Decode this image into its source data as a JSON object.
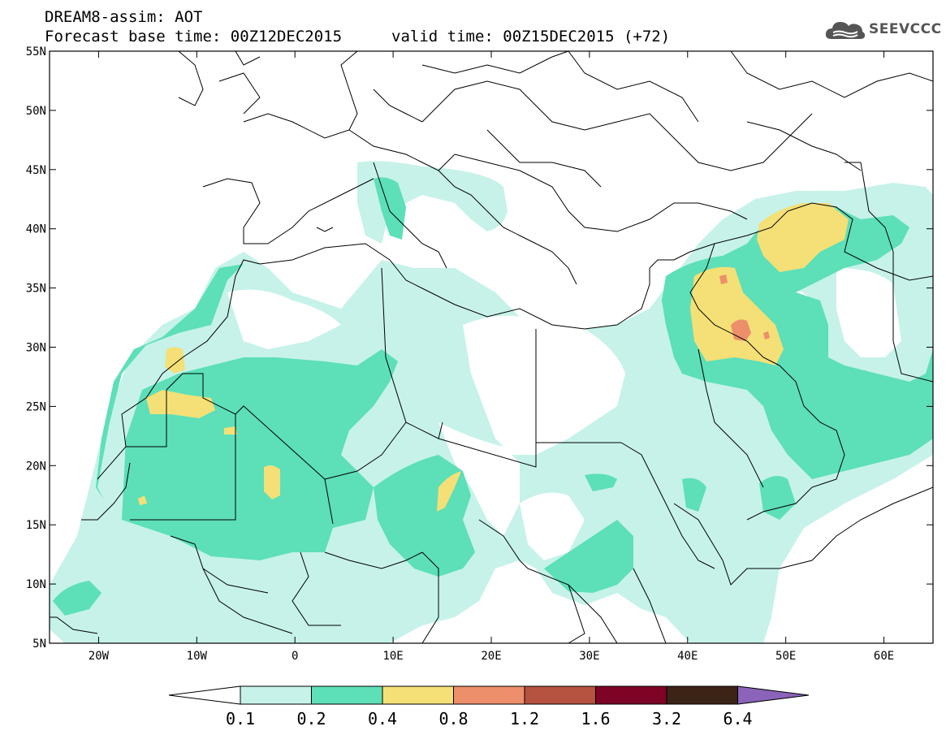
{
  "header": {
    "title": "DREAM8-assim: AOT",
    "base_time": "Forecast base time: 00Z12DEC2015",
    "valid_time": "valid time: 00Z15DEC2015 (+72)"
  },
  "logo": {
    "text": "SEEVCCC",
    "icon": "cloud-icon"
  },
  "map": {
    "lat_labels": [
      "55N",
      "50N",
      "45N",
      "40N",
      "35N",
      "30N",
      "25N",
      "20N",
      "15N",
      "10N",
      "5N"
    ],
    "lon_labels": [
      "20W",
      "10W",
      "0",
      "10E",
      "20E",
      "30E",
      "40E",
      "50E",
      "60E"
    ],
    "lat_range": [
      5,
      55
    ],
    "lon_range": [
      -25,
      65
    ]
  },
  "colorbar": {
    "labels": [
      "0.1",
      "0.2",
      "0.4",
      "0.8",
      "1.2",
      "1.6",
      "3.2",
      "6.4"
    ],
    "colors": [
      "#c6f2ea",
      "#5ddfb8",
      "#f4e077",
      "#ec8f6a",
      "#b65240",
      "#7d0425",
      "#3b2316"
    ],
    "under_color": "#ffffff",
    "over_color": "#8b63b8"
  },
  "colors": {
    "aot_0_1": "#c6f2ea",
    "aot_0_2": "#5ddfb8",
    "aot_0_4": "#f4e077",
    "aot_0_8": "#ec8f6a",
    "border": "#000000"
  }
}
